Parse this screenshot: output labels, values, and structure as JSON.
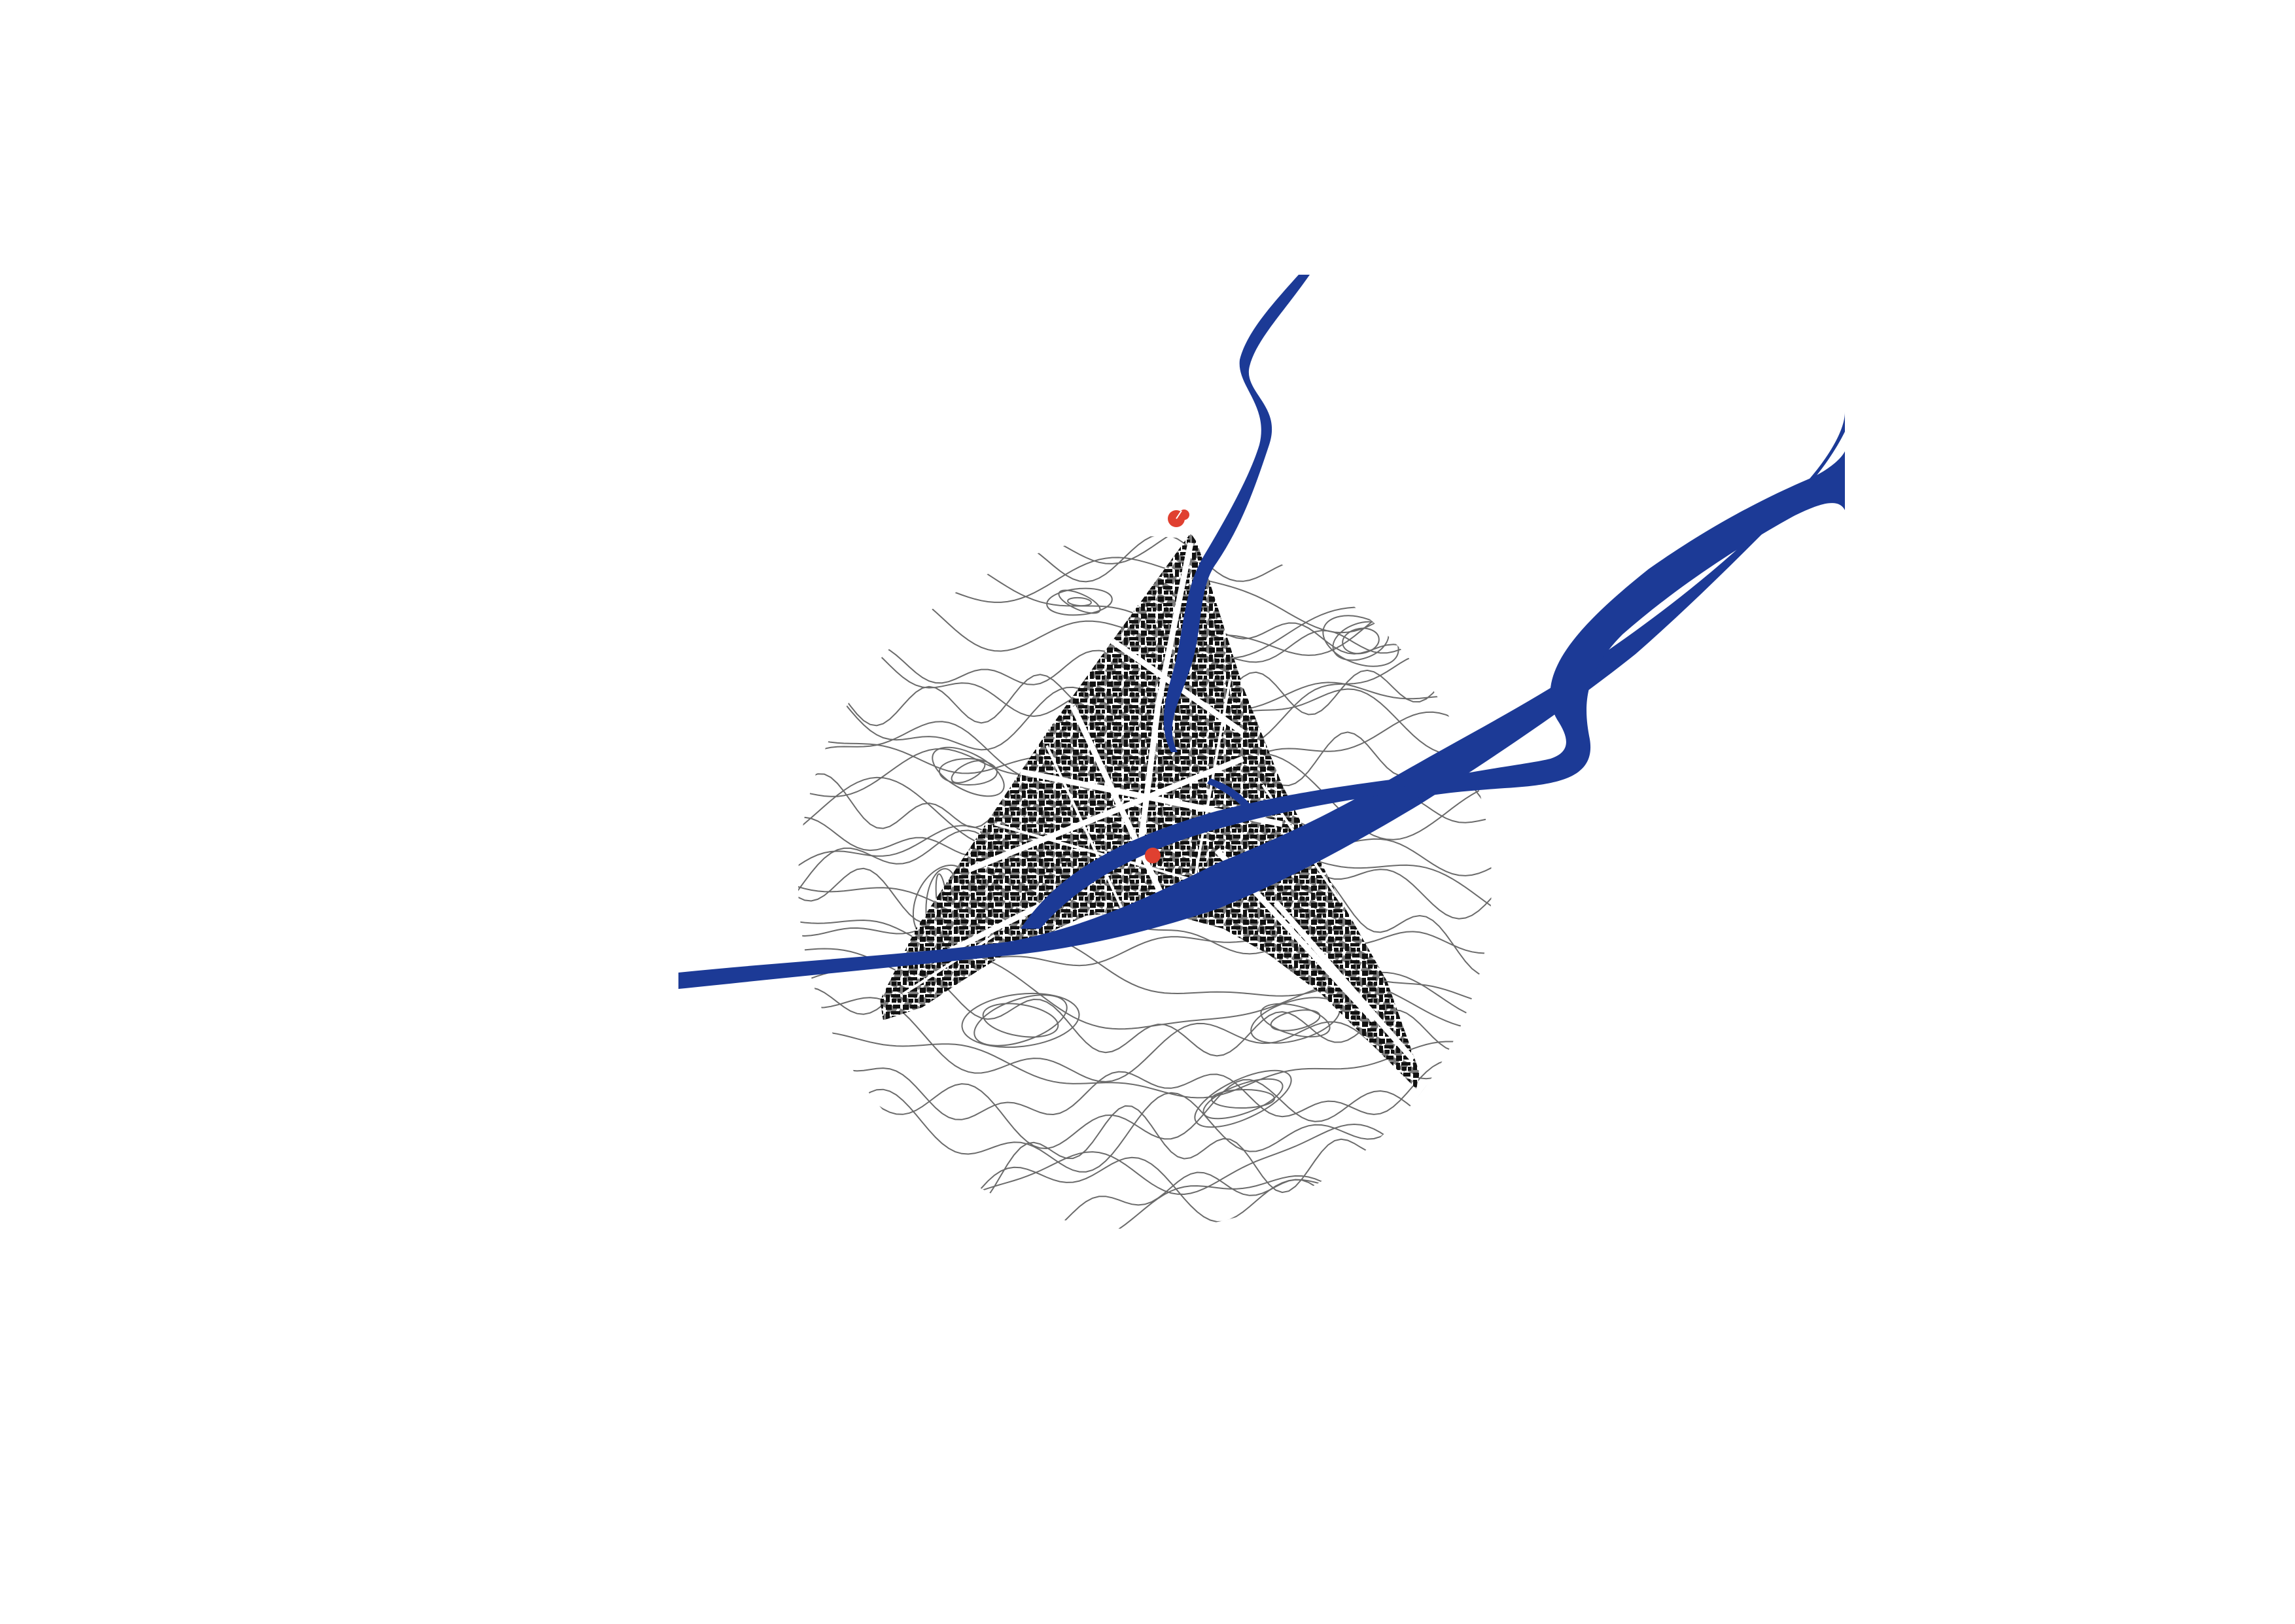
{
  "map": {
    "labels": [],
    "colors": {
      "background": "#ffffff",
      "river": "#1c3a96",
      "buildings": "#111111",
      "contours": "#6a6a6a",
      "markers": "#e04030"
    },
    "layers": [
      {
        "name": "contour-lines",
        "icon": "contour-lines"
      },
      {
        "name": "building-footprints",
        "icon": "figure-ground"
      },
      {
        "name": "rivers",
        "icon": "river"
      },
      {
        "name": "location-markers",
        "icon": "location-pin-icon"
      }
    ]
  }
}
